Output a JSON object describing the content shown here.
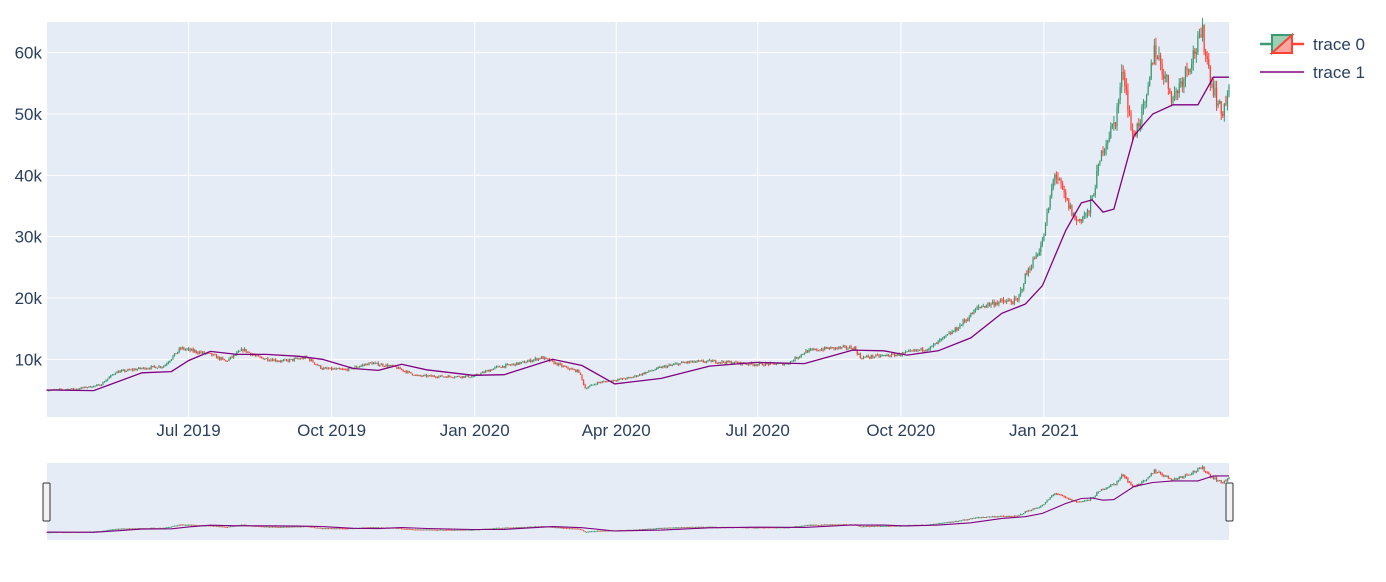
{
  "chart_data": {
    "type": "candlestick",
    "x_range": [
      "2019-04-01",
      "2021-04-30"
    ],
    "y_range": [
      600,
      65000
    ],
    "x_ticks": [
      {
        "date": "2019-07-01",
        "label": "Jul 2019"
      },
      {
        "date": "2019-10-01",
        "label": "Oct 2019"
      },
      {
        "date": "2020-01-01",
        "label": "Jan 2020"
      },
      {
        "date": "2020-04-01",
        "label": "Apr 2020"
      },
      {
        "date": "2020-07-01",
        "label": "Jul 2020"
      },
      {
        "date": "2020-10-01",
        "label": "Oct 2020"
      },
      {
        "date": "2021-01-01",
        "label": "Jan 2021"
      }
    ],
    "y_ticks": [
      {
        "value": 10000,
        "label": "10k"
      },
      {
        "value": 20000,
        "label": "20k"
      },
      {
        "value": 30000,
        "label": "30k"
      },
      {
        "value": 40000,
        "label": "40k"
      },
      {
        "value": 50000,
        "label": "50k"
      },
      {
        "value": 60000,
        "label": "60k"
      }
    ],
    "grid": true,
    "legend_position": "top-right",
    "rangeslider": true,
    "series": [
      {
        "name": "trace 0",
        "kind": "candlestick",
        "increasing_color": "#3d9970",
        "decreasing_color": "#ff4136"
      },
      {
        "name": "trace 1",
        "kind": "line",
        "color": "#800080"
      }
    ],
    "close_path": [
      [
        "2019-04-01",
        5000
      ],
      [
        "2019-04-20",
        5200
      ],
      [
        "2019-05-05",
        5800
      ],
      [
        "2019-05-15",
        7900
      ],
      [
        "2019-05-31",
        8500
      ],
      [
        "2019-06-15",
        8900
      ],
      [
        "2019-06-26",
        11800
      ],
      [
        "2019-07-05",
        11300
      ],
      [
        "2019-07-15",
        10800
      ],
      [
        "2019-07-25",
        9700
      ],
      [
        "2019-08-05",
        11600
      ],
      [
        "2019-08-15",
        10300
      ],
      [
        "2019-08-31",
        9700
      ],
      [
        "2019-09-15",
        10300
      ],
      [
        "2019-09-25",
        8500
      ],
      [
        "2019-10-10",
        8300
      ],
      [
        "2019-10-26",
        9400
      ],
      [
        "2019-11-10",
        8800
      ],
      [
        "2019-11-25",
        7300
      ],
      [
        "2019-12-15",
        7200
      ],
      [
        "2019-12-31",
        7200
      ],
      [
        "2020-01-15",
        8700
      ],
      [
        "2020-01-31",
        9400
      ],
      [
        "2020-02-13",
        10300
      ],
      [
        "2020-02-28",
        8700
      ],
      [
        "2020-03-08",
        8000
      ],
      [
        "2020-03-12",
        5300
      ],
      [
        "2020-03-20",
        6200
      ],
      [
        "2020-04-10",
        7000
      ],
      [
        "2020-04-30",
        8700
      ],
      [
        "2020-05-15",
        9500
      ],
      [
        "2020-06-01",
        9700
      ],
      [
        "2020-06-30",
        9200
      ],
      [
        "2020-07-20",
        9300
      ],
      [
        "2020-08-01",
        11300
      ],
      [
        "2020-08-15",
        11800
      ],
      [
        "2020-09-01",
        11900
      ],
      [
        "2020-09-05",
        10300
      ],
      [
        "2020-09-30",
        10800
      ],
      [
        "2020-10-20",
        11900
      ],
      [
        "2020-11-05",
        14800
      ],
      [
        "2020-11-20",
        18500
      ],
      [
        "2020-12-01",
        19300
      ],
      [
        "2020-12-15",
        19500
      ],
      [
        "2020-12-20",
        23500
      ],
      [
        "2020-12-31",
        29000
      ],
      [
        "2021-01-08",
        40500
      ],
      [
        "2021-01-15",
        36000
      ],
      [
        "2021-01-22",
        32500
      ],
      [
        "2021-01-30",
        34000
      ],
      [
        "2021-02-08",
        44500
      ],
      [
        "2021-02-16",
        49000
      ],
      [
        "2021-02-21",
        57500
      ],
      [
        "2021-02-27",
        46000
      ],
      [
        "2021-03-08",
        52000
      ],
      [
        "2021-03-13",
        61000
      ],
      [
        "2021-03-25",
        52500
      ],
      [
        "2021-04-13",
        63000
      ],
      [
        "2021-04-18",
        56000
      ],
      [
        "2021-04-25",
        50000
      ],
      [
        "2021-04-30",
        53500
      ]
    ],
    "moving_average": [
      [
        "2019-04-01",
        5000
      ],
      [
        "2019-05-01",
        4900
      ],
      [
        "2019-06-01",
        7800
      ],
      [
        "2019-06-20",
        8000
      ],
      [
        "2019-07-01",
        9800
      ],
      [
        "2019-07-15",
        11300
      ],
      [
        "2019-08-01",
        10800
      ],
      [
        "2019-08-20",
        10800
      ],
      [
        "2019-09-10",
        10500
      ],
      [
        "2019-09-25",
        10000
      ],
      [
        "2019-10-15",
        8500
      ],
      [
        "2019-10-31",
        8200
      ],
      [
        "2019-11-15",
        9200
      ],
      [
        "2019-12-01",
        8300
      ],
      [
        "2019-12-31",
        7400
      ],
      [
        "2020-01-20",
        7500
      ],
      [
        "2020-02-20",
        10000
      ],
      [
        "2020-03-10",
        9000
      ],
      [
        "2020-03-31",
        6000
      ],
      [
        "2020-04-30",
        6900
      ],
      [
        "2020-05-31",
        8900
      ],
      [
        "2020-06-30",
        9500
      ],
      [
        "2020-07-31",
        9300
      ],
      [
        "2020-08-31",
        11500
      ],
      [
        "2020-09-20",
        11400
      ],
      [
        "2020-10-05",
        10700
      ],
      [
        "2020-10-25",
        11400
      ],
      [
        "2020-11-15",
        13500
      ],
      [
        "2020-12-05",
        17500
      ],
      [
        "2020-12-20",
        19000
      ],
      [
        "2020-12-31",
        22000
      ],
      [
        "2021-01-15",
        31000
      ],
      [
        "2021-01-25",
        35500
      ],
      [
        "2021-02-01",
        36000
      ],
      [
        "2021-02-08",
        34000
      ],
      [
        "2021-02-15",
        34500
      ],
      [
        "2021-02-28",
        46500
      ],
      [
        "2021-03-12",
        50000
      ],
      [
        "2021-03-25",
        51500
      ],
      [
        "2021-04-10",
        51500
      ],
      [
        "2021-04-20",
        56000
      ],
      [
        "2021-04-30",
        56000
      ]
    ]
  }
}
